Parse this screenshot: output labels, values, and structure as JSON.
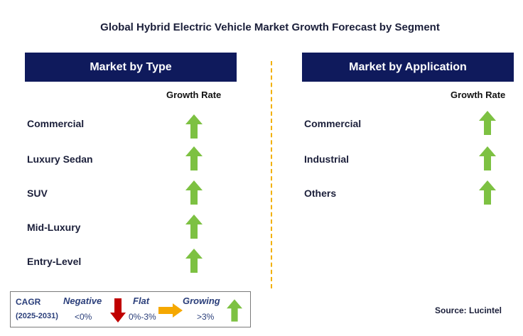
{
  "title": "Global Hybrid Electric Vehicle Market Growth Forecast by Segment",
  "left_panel": {
    "header": "Market by Type",
    "growth_label": "Growth Rate",
    "rows": [
      {
        "label": "Commercial",
        "trend": "growing"
      },
      {
        "label": "Luxury Sedan",
        "trend": "growing"
      },
      {
        "label": "SUV",
        "trend": "growing"
      },
      {
        "label": "Mid-Luxury",
        "trend": "growing"
      },
      {
        "label": "Entry-Level",
        "trend": "growing"
      }
    ]
  },
  "right_panel": {
    "header": "Market by Application",
    "growth_label": "Growth Rate",
    "rows": [
      {
        "label": "Commercial",
        "trend": "growing"
      },
      {
        "label": "Industrial",
        "trend": "growing"
      },
      {
        "label": "Others",
        "trend": "growing"
      }
    ]
  },
  "legend": {
    "cagr_title": "CAGR",
    "cagr_range": "(2025-2031)",
    "negative_label": "Negative",
    "negative_value": "<0%",
    "flat_label": "Flat",
    "flat_value": "0%-3%",
    "growing_label": "Growing",
    "growing_value": ">3%"
  },
  "source": "Source: Lucintel",
  "colors": {
    "header_bg": "#0f1a5c",
    "growing": "#7dc142",
    "negative": "#c00000",
    "flat": "#f5a800",
    "divider": "#f2b000"
  },
  "icons": {
    "growing": "green-up-arrow-icon",
    "negative": "red-down-arrow-icon",
    "flat": "orange-right-arrow-icon"
  }
}
